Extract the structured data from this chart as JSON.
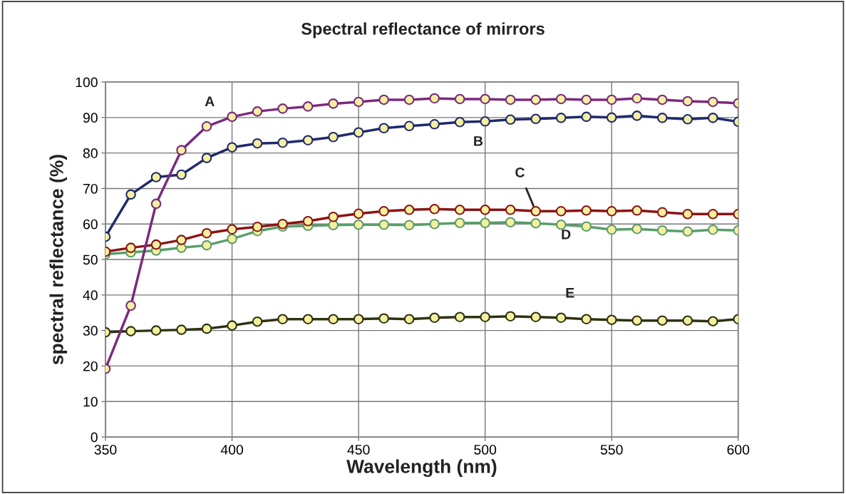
{
  "chart_data": {
    "type": "line",
    "title": "Spectral reflectance of mirrors",
    "xlabel": "Wavelength (nm)",
    "ylabel": "spectral reflectance (%)",
    "x": [
      350,
      360,
      370,
      380,
      390,
      400,
      410,
      420,
      430,
      440,
      450,
      460,
      470,
      480,
      490,
      500,
      510,
      520,
      530,
      540,
      550,
      560,
      570,
      580,
      590,
      600
    ],
    "series": [
      {
        "name": "A",
        "color": "#7b2a7e",
        "values": [
          19.2,
          37,
          65.7,
          80.8,
          87.5,
          90.2,
          91.7,
          92.5,
          93.1,
          93.9,
          94.4,
          95,
          95,
          95.4,
          95.2,
          95.2,
          95,
          95,
          95.2,
          95,
          95,
          95.4,
          95,
          94.6,
          94.4,
          94
        ]
      },
      {
        "name": "B",
        "color": "#1f2a6e",
        "values": [
          56.4,
          68.3,
          73.2,
          73.9,
          78.6,
          81.6,
          82.7,
          82.9,
          83.6,
          84.5,
          85.8,
          87,
          87.6,
          88.1,
          88.7,
          88.9,
          89.4,
          89.6,
          89.9,
          90.2,
          90,
          90.5,
          89.9,
          89.5,
          89.9,
          88.8
        ]
      },
      {
        "name": "C",
        "color": "#8b1414",
        "values": [
          52.2,
          53.3,
          54.2,
          55.5,
          57.4,
          58.5,
          59.2,
          60,
          60.8,
          62,
          62.9,
          63.6,
          64,
          64.2,
          64,
          64,
          64,
          63.6,
          63.6,
          63.8,
          63.6,
          63.8,
          63.3,
          62.8,
          62.8,
          62.8
        ]
      },
      {
        "name": "D",
        "color": "#5a9e6a",
        "values": [
          51.5,
          52,
          52.5,
          53.3,
          54,
          55.8,
          58,
          59.3,
          59.5,
          59.7,
          59.8,
          59.8,
          59.7,
          60,
          60.3,
          60.3,
          60.5,
          60.2,
          59.8,
          59.3,
          58.4,
          58.6,
          58.2,
          57.9,
          58.4,
          58.2
        ]
      },
      {
        "name": "E",
        "color": "#2e3310",
        "values": [
          29.5,
          29.8,
          30,
          30.2,
          30.5,
          31.4,
          32.5,
          33.2,
          33.2,
          33.2,
          33.2,
          33.4,
          33.2,
          33.6,
          33.8,
          33.8,
          34,
          33.8,
          33.6,
          33.2,
          33,
          32.8,
          32.8,
          32.8,
          32.6,
          33.2
        ]
      }
    ],
    "xlim": [
      350,
      600
    ],
    "xticks": [
      350,
      400,
      450,
      500,
      550,
      600
    ],
    "ylim": [
      0,
      100
    ],
    "yticks": [
      0,
      10,
      20,
      30,
      40,
      50,
      60,
      70,
      80,
      90,
      100
    ],
    "grid": true,
    "marker": "circle",
    "line_style": "solid"
  }
}
